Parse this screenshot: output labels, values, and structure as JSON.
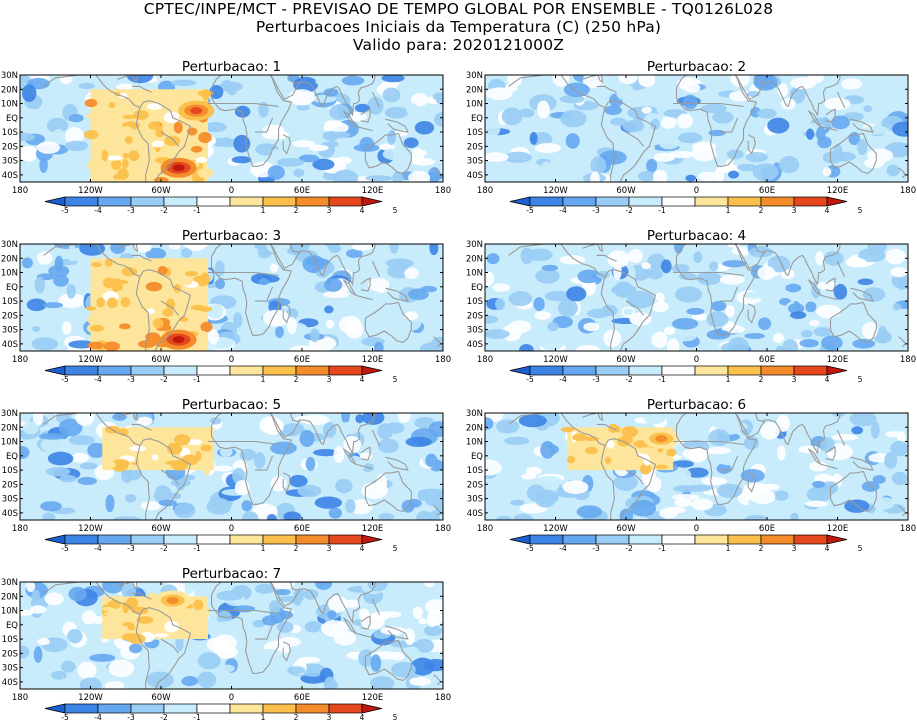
{
  "title_lines": [
    "CPTEC/INPE/MCT - PREVISAO DE TEMPO GLOBAL POR ENSEMBLE - TQ0126L028",
    "Perturbacoes Iniciais da Temperatura (C) (250 hPa)",
    "Valido para: 2020121000Z"
  ],
  "chart_data": [
    {
      "type": "heatmap",
      "title": "Perturbacao: 1",
      "x_ticks": [
        "180",
        "120W",
        "60W",
        "0",
        "60E",
        "120E",
        "180"
      ],
      "y_ticks": [
        "30N",
        "20N",
        "10N",
        "EQ",
        "10S",
        "20S",
        "30S",
        "40S"
      ],
      "colorbar_labels": [
        "-5",
        "-4",
        "-3",
        "-2",
        "-1",
        "1",
        "2",
        "3",
        "4",
        "5"
      ],
      "colorbar_colors": [
        "#1e5fd0",
        "#3c84e6",
        "#66a8f0",
        "#99cdf5",
        "#c8ecfb",
        "#ffffff",
        "#fde69b",
        "#fbc04b",
        "#f58c2b",
        "#e6481e",
        "#c0180c"
      ],
      "warm_regions": [
        {
          "lon": [
            -120,
            -20
          ],
          "lat": [
            -45,
            20
          ],
          "level": 2
        }
      ],
      "hotspots": [
        {
          "lon": -45,
          "lat": -35,
          "level": 5
        },
        {
          "lon": -30,
          "lat": 5,
          "level": 4
        }
      ]
    },
    {
      "type": "heatmap",
      "title": "Perturbacao: 2",
      "x_ticks": [
        "180",
        "120W",
        "60W",
        "0",
        "60E",
        "120E",
        "180"
      ],
      "y_ticks": [
        "30N",
        "20N",
        "10N",
        "EQ",
        "10S",
        "20S",
        "30S",
        "40S"
      ],
      "colorbar_labels": [
        "-5",
        "-4",
        "-3",
        "-2",
        "-1",
        "1",
        "2",
        "3",
        "4",
        "5"
      ],
      "colorbar_colors": [
        "#1e5fd0",
        "#3c84e6",
        "#66a8f0",
        "#99cdf5",
        "#c8ecfb",
        "#ffffff",
        "#fde69b",
        "#fbc04b",
        "#f58c2b",
        "#e6481e",
        "#c0180c"
      ],
      "warm_regions": [],
      "hotspots": []
    },
    {
      "type": "heatmap",
      "title": "Perturbacao: 3",
      "x_ticks": [
        "180",
        "120W",
        "60W",
        "0",
        "60E",
        "120E",
        "180"
      ],
      "y_ticks": [
        "30N",
        "20N",
        "10N",
        "EQ",
        "10S",
        "20S",
        "30S",
        "40S"
      ],
      "colorbar_labels": [
        "-5",
        "-4",
        "-3",
        "-2",
        "-1",
        "1",
        "2",
        "3",
        "4",
        "5"
      ],
      "colorbar_colors": [
        "#1e5fd0",
        "#3c84e6",
        "#66a8f0",
        "#99cdf5",
        "#c8ecfb",
        "#ffffff",
        "#fde69b",
        "#fbc04b",
        "#f58c2b",
        "#e6481e",
        "#c0180c"
      ],
      "warm_regions": [
        {
          "lon": [
            -120,
            -20
          ],
          "lat": [
            -45,
            20
          ],
          "level": 2
        }
      ],
      "hotspots": [
        {
          "lon": -45,
          "lat": -37,
          "level": 5
        }
      ]
    },
    {
      "type": "heatmap",
      "title": "Perturbacao: 4",
      "x_ticks": [
        "180",
        "120W",
        "60W",
        "0",
        "60E",
        "120E",
        "180"
      ],
      "y_ticks": [
        "30N",
        "20N",
        "10N",
        "EQ",
        "10S",
        "20S",
        "30S",
        "40S"
      ],
      "colorbar_labels": [
        "-5",
        "-4",
        "-3",
        "-2",
        "-1",
        "1",
        "2",
        "3",
        "4",
        "5"
      ],
      "colorbar_colors": [
        "#1e5fd0",
        "#3c84e6",
        "#66a8f0",
        "#99cdf5",
        "#c8ecfb",
        "#ffffff",
        "#fde69b",
        "#fbc04b",
        "#f58c2b",
        "#e6481e",
        "#c0180c"
      ],
      "warm_regions": [],
      "hotspots": []
    },
    {
      "type": "heatmap",
      "title": "Perturbacao: 5",
      "x_ticks": [
        "180",
        "120W",
        "60W",
        "0",
        "60E",
        "120E",
        "180"
      ],
      "y_ticks": [
        "30N",
        "20N",
        "10N",
        "EQ",
        "10S",
        "20S",
        "30S",
        "40S"
      ],
      "colorbar_labels": [
        "-5",
        "-4",
        "-3",
        "-2",
        "-1",
        "1",
        "2",
        "3",
        "4",
        "5"
      ],
      "colorbar_colors": [
        "#1e5fd0",
        "#3c84e6",
        "#66a8f0",
        "#99cdf5",
        "#c8ecfb",
        "#ffffff",
        "#fde69b",
        "#fbc04b",
        "#f58c2b",
        "#e6481e",
        "#c0180c"
      ],
      "warm_regions": [
        {
          "lon": [
            -110,
            -15
          ],
          "lat": [
            -10,
            20
          ],
          "level": 1
        }
      ],
      "hotspots": []
    },
    {
      "type": "heatmap",
      "title": "Perturbacao: 6",
      "x_ticks": [
        "180",
        "120W",
        "60W",
        "0",
        "60E",
        "120E",
        "180"
      ],
      "y_ticks": [
        "30N",
        "20N",
        "10N",
        "EQ",
        "10S",
        "20S",
        "30S",
        "40S"
      ],
      "colorbar_labels": [
        "-5",
        "-4",
        "-3",
        "-2",
        "-1",
        "1",
        "2",
        "3",
        "4",
        "5"
      ],
      "colorbar_colors": [
        "#1e5fd0",
        "#3c84e6",
        "#66a8f0",
        "#99cdf5",
        "#c8ecfb",
        "#ffffff",
        "#fde69b",
        "#fbc04b",
        "#f58c2b",
        "#e6481e",
        "#c0180c"
      ],
      "warm_regions": [
        {
          "lon": [
            -110,
            -20
          ],
          "lat": [
            -10,
            20
          ],
          "level": 1
        }
      ],
      "hotspots": [
        {
          "lon": -30,
          "lat": 12,
          "level": 3
        }
      ]
    },
    {
      "type": "heatmap",
      "title": "Perturbacao: 7",
      "x_ticks": [
        "180",
        "120W",
        "60W",
        "0",
        "60E",
        "120E",
        "180"
      ],
      "y_ticks": [
        "30N",
        "20N",
        "10N",
        "EQ",
        "10S",
        "20S",
        "30S",
        "40S"
      ],
      "colorbar_labels": [
        "-5",
        "-4",
        "-3",
        "-2",
        "-1",
        "1",
        "2",
        "3",
        "4",
        "5"
      ],
      "colorbar_colors": [
        "#1e5fd0",
        "#3c84e6",
        "#66a8f0",
        "#99cdf5",
        "#c8ecfb",
        "#ffffff",
        "#fde69b",
        "#fbc04b",
        "#f58c2b",
        "#e6481e",
        "#c0180c"
      ],
      "warm_regions": [
        {
          "lon": [
            -110,
            -20
          ],
          "lat": [
            -10,
            20
          ],
          "level": 1
        }
      ],
      "hotspots": [
        {
          "lon": -50,
          "lat": 17,
          "level": 3
        }
      ]
    }
  ]
}
